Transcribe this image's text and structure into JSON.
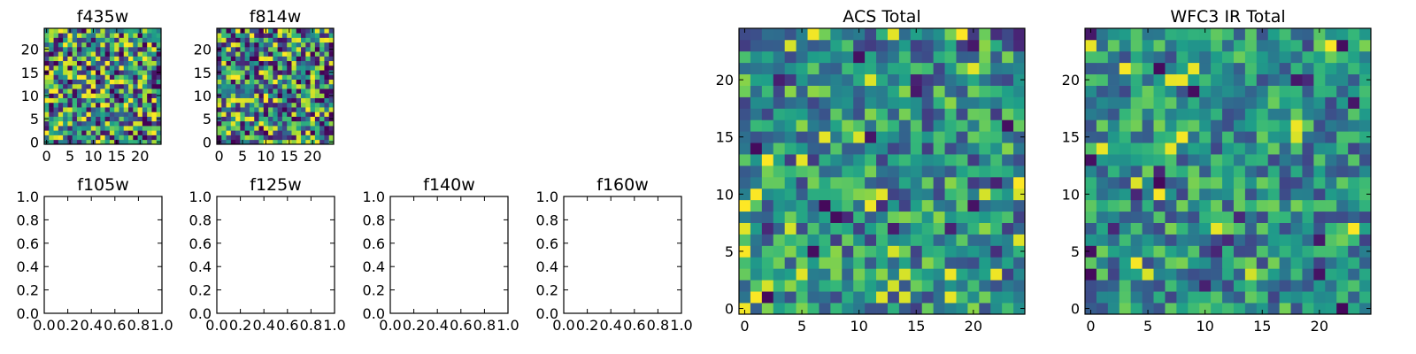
{
  "chart_data": [
    {
      "id": "f435w",
      "type": "heatmap",
      "title": "f435w",
      "xlabel": "",
      "ylabel": "",
      "xlim": [
        -0.5,
        24.5
      ],
      "ylim": [
        -0.5,
        24.5
      ],
      "xticks": [
        0,
        5,
        10,
        15,
        20
      ],
      "yticks": [
        0,
        5,
        10,
        15,
        20
      ],
      "xtick_labels": [
        "0",
        "5",
        "10",
        "15",
        "20"
      ],
      "ytick_labels": [
        "0",
        "5",
        "10",
        "15",
        "20"
      ],
      "grid": false,
      "colormap": "viridis",
      "nrows": 25,
      "ncols": 25,
      "seed": 11,
      "contrast": 0.9
    },
    {
      "id": "f814w",
      "type": "heatmap",
      "title": "f814w",
      "xlabel": "",
      "ylabel": "",
      "xlim": [
        -0.5,
        24.5
      ],
      "ylim": [
        -0.5,
        24.5
      ],
      "xticks": [
        0,
        5,
        10,
        15,
        20
      ],
      "yticks": [
        0,
        5,
        10,
        15,
        20
      ],
      "xtick_labels": [
        "0",
        "5",
        "10",
        "15",
        "20"
      ],
      "ytick_labels": [
        "0",
        "5",
        "10",
        "15",
        "20"
      ],
      "grid": false,
      "colormap": "viridis",
      "nrows": 25,
      "ncols": 25,
      "seed": 23,
      "contrast": 0.9
    },
    {
      "id": "f105w",
      "type": "scatter",
      "title": "f105w",
      "xlabel": "",
      "ylabel": "",
      "xlim": [
        0.0,
        1.0
      ],
      "ylim": [
        0.0,
        1.0
      ],
      "xtick_labels": [
        "0.0",
        "0.2",
        "0.4",
        "0.6",
        "0.8",
        "1.0"
      ],
      "ytick_labels": [
        "0.0",
        "0.2",
        "0.4",
        "0.6",
        "0.8",
        "1.0"
      ],
      "grid": false,
      "series": []
    },
    {
      "id": "f125w",
      "type": "scatter",
      "title": "f125w",
      "xlabel": "",
      "ylabel": "",
      "xlim": [
        0.0,
        1.0
      ],
      "ylim": [
        0.0,
        1.0
      ],
      "xtick_labels": [
        "0.0",
        "0.2",
        "0.4",
        "0.6",
        "0.8",
        "1.0"
      ],
      "ytick_labels": [
        "0.0",
        "0.2",
        "0.4",
        "0.6",
        "0.8",
        "1.0"
      ],
      "grid": false,
      "series": []
    },
    {
      "id": "f140w",
      "type": "scatter",
      "title": "f140w",
      "xlabel": "",
      "ylabel": "",
      "xlim": [
        0.0,
        1.0
      ],
      "ylim": [
        0.0,
        1.0
      ],
      "xtick_labels": [
        "0.0",
        "0.2",
        "0.4",
        "0.6",
        "0.8",
        "1.0"
      ],
      "ytick_labels": [
        "0.0",
        "0.2",
        "0.4",
        "0.6",
        "0.8",
        "1.0"
      ],
      "grid": false,
      "series": []
    },
    {
      "id": "f160w",
      "type": "scatter",
      "title": "f160w",
      "xlabel": "",
      "ylabel": "",
      "xlim": [
        0.0,
        1.0
      ],
      "ylim": [
        0.0,
        1.0
      ],
      "xtick_labels": [
        "0.0",
        "0.2",
        "0.4",
        "0.6",
        "0.8",
        "1.0"
      ],
      "ytick_labels": [
        "0.0",
        "0.2",
        "0.4",
        "0.6",
        "0.8",
        "1.0"
      ],
      "grid": false,
      "series": []
    },
    {
      "id": "acs_total",
      "type": "heatmap",
      "title": "ACS Total",
      "xlabel": "",
      "ylabel": "",
      "xlim": [
        -0.5,
        24.5
      ],
      "ylim": [
        -0.5,
        24.5
      ],
      "xticks": [
        0,
        5,
        10,
        15,
        20
      ],
      "yticks": [
        0,
        5,
        10,
        15,
        20
      ],
      "xtick_labels": [
        "0",
        "5",
        "10",
        "15",
        "20"
      ],
      "ytick_labels": [
        "0",
        "5",
        "10",
        "15",
        "20"
      ],
      "grid": false,
      "colormap": "viridis",
      "nrows": 25,
      "ncols": 25,
      "seed": 37,
      "contrast": 0.55
    },
    {
      "id": "wfc3_ir_total",
      "type": "heatmap",
      "title": "WFC3 IR Total",
      "xlabel": "",
      "ylabel": "",
      "xlim": [
        -0.5,
        24.5
      ],
      "ylim": [
        -0.5,
        24.5
      ],
      "xticks": [
        0,
        5,
        10,
        15,
        20
      ],
      "yticks": [
        0,
        5,
        10,
        15,
        20
      ],
      "xtick_labels": [
        "0",
        "5",
        "10",
        "15",
        "20"
      ],
      "ytick_labels": [
        "0",
        "5",
        "10",
        "15",
        "20"
      ],
      "grid": false,
      "colormap": "viridis",
      "nrows": 25,
      "ncols": 25,
      "seed": 51,
      "contrast": 0.5
    }
  ]
}
